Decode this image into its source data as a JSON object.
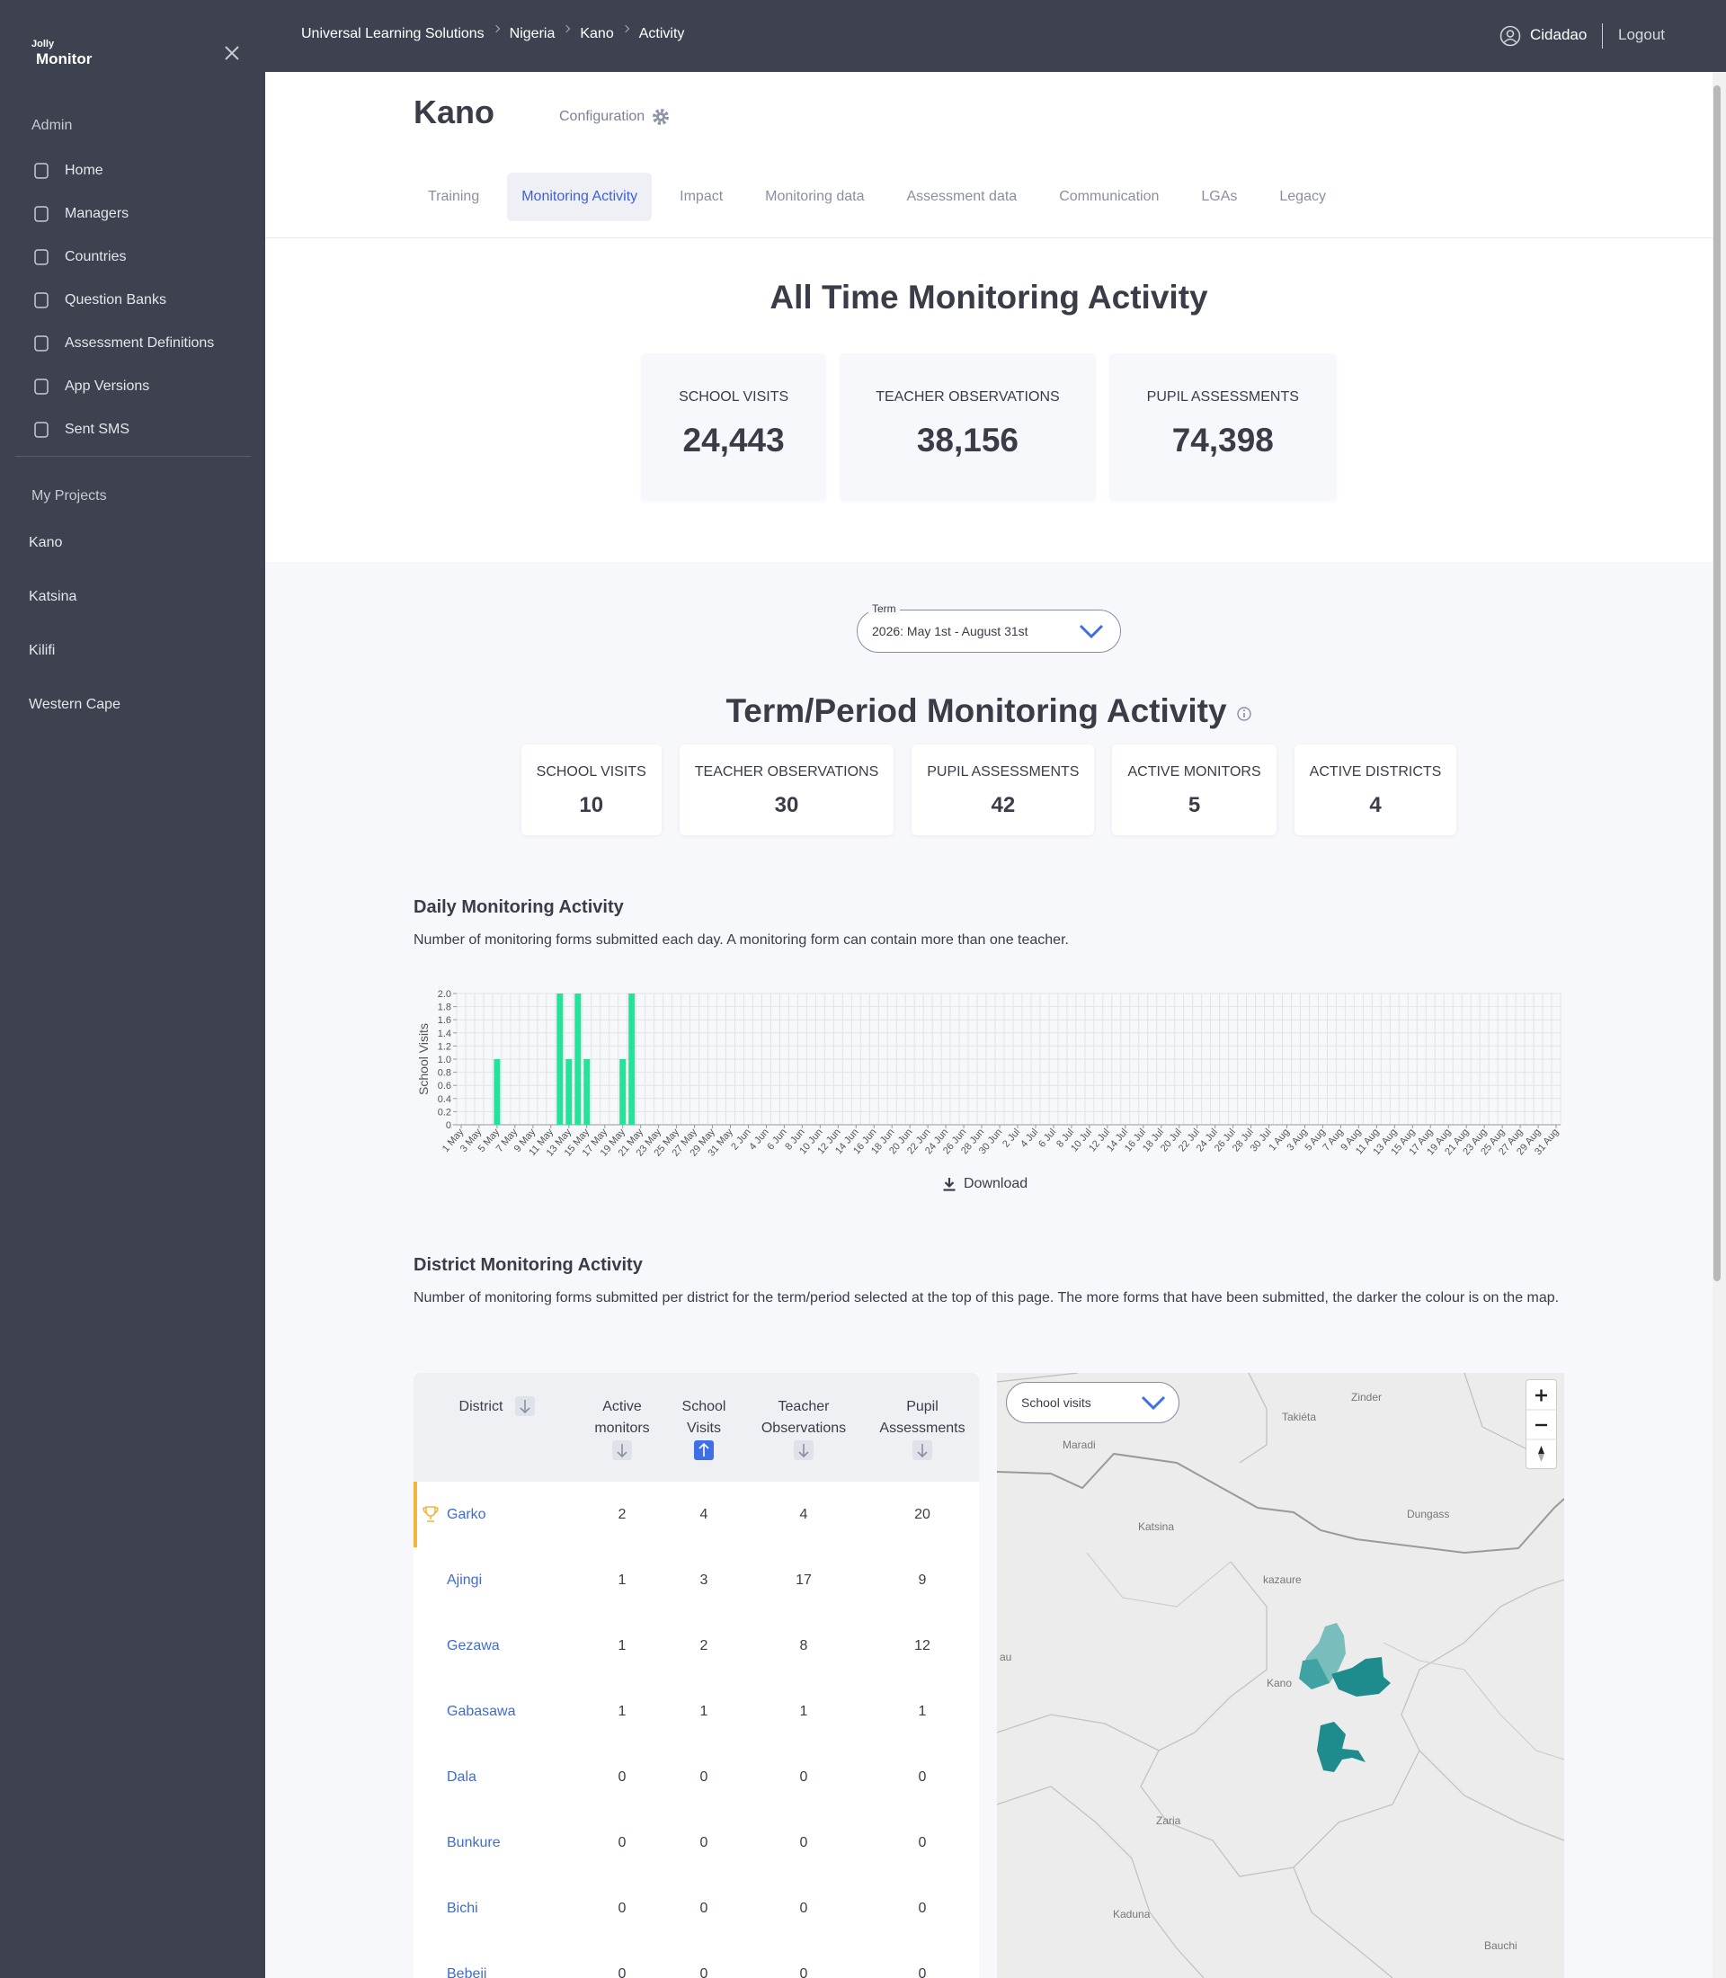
{
  "sidebar": {
    "logo_small": "Jolly",
    "logo": "Monitor",
    "admin_label": "Admin",
    "admin_items": [
      "Home",
      "Managers",
      "Countries",
      "Question Banks",
      "Assessment Definitions",
      "App Versions",
      "Sent SMS"
    ],
    "projects_label": "My Projects",
    "projects": [
      "Kano",
      "Katsina",
      "Kilifi",
      "Western Cape"
    ]
  },
  "topbar": {
    "breadcrumb": [
      "Universal Learning Solutions",
      "Nigeria",
      "Kano",
      "Activity"
    ],
    "user": "Cidadao",
    "logout": "Logout"
  },
  "header": {
    "title": "Kano",
    "configuration": "Configuration",
    "tabs": [
      "Training",
      "Monitoring Activity",
      "Impact",
      "Monitoring data",
      "Assessment data",
      "Communication",
      "LGAs",
      "Legacy"
    ]
  },
  "all_time": {
    "title": "All Time Monitoring Activity",
    "stats": [
      {
        "label": "SCHOOL VISITS",
        "value": "24,443"
      },
      {
        "label": "TEACHER OBSERVATIONS",
        "value": "38,156"
      },
      {
        "label": "PUPIL ASSESSMENTS",
        "value": "74,398"
      }
    ]
  },
  "term": {
    "label": "Term",
    "value": "2026: May 1st - August 31st"
  },
  "period": {
    "title": "Term/Period Monitoring Activity",
    "stats": [
      {
        "label": "SCHOOL VISITS",
        "value": 10
      },
      {
        "label": "TEACHER OBSERVATIONS",
        "value": 30
      },
      {
        "label": "PUPIL ASSESSMENTS",
        "value": 42
      },
      {
        "label": "ACTIVE MONITORS",
        "value": 5
      },
      {
        "label": "ACTIVE DISTRICTS",
        "value": 4
      }
    ]
  },
  "chart_data": {
    "type": "bar",
    "title": "Daily Monitoring Activity",
    "subtitle": "Number of monitoring forms submitted each day. A monitoring form can contain more than one teacher.",
    "y_label": "School Visits",
    "color": "#22e39a",
    "grid": true,
    "ylim": [
      0,
      2
    ],
    "yticks": [
      0,
      0.2,
      0.4,
      0.6,
      0.8,
      {
        "value": 1,
        "label": "1.0"
      },
      1.2,
      1.4,
      1.6,
      1.8,
      {
        "value": 2,
        "label": "2.0"
      }
    ],
    "categories": [
      "1 May",
      null,
      "3 May",
      null,
      "5 May",
      null,
      "7 May",
      null,
      "9 May",
      null,
      "11 May",
      null,
      "13 May",
      null,
      "15 May",
      null,
      "17 May",
      null,
      "19 May",
      null,
      "21 May",
      null,
      "23 May",
      null,
      "25 May",
      null,
      "27 May",
      null,
      "29 May",
      null,
      "31 May",
      null,
      "2 Jun",
      null,
      "4 Jun",
      null,
      "6 Jun",
      null,
      "8 Jun",
      null,
      "10 Jun",
      null,
      "12 Jun",
      null,
      "14 Jun",
      null,
      "16 Jun",
      null,
      "18 Jun",
      null,
      "20 Jun",
      null,
      "22 Jun",
      null,
      "24 Jun",
      null,
      "26 Jun",
      null,
      "28 Jun",
      null,
      "30 Jun",
      null,
      "2 Jul",
      null,
      "4 Jul",
      null,
      "6 Jul",
      null,
      "8 Jul",
      null,
      "10 Jul",
      null,
      "12 Jul",
      null,
      "14 Jul",
      null,
      "16 Jul",
      null,
      "18 Jul",
      null,
      "20 Jul",
      null,
      "22 Jul",
      null,
      "24 Jul",
      null,
      "26 Jul",
      null,
      "28 Jul",
      null,
      "30 Jul",
      null,
      "1 Aug",
      null,
      "3 Aug",
      null,
      "5 Aug",
      null,
      "7 Aug",
      null,
      "9 Aug",
      null,
      "11 Aug",
      null,
      "13 Aug",
      null,
      "15 Aug",
      null,
      "17 Aug",
      null,
      "19 Aug",
      null,
      "21 Aug",
      null,
      "23 Aug",
      null,
      "25 Aug",
      null,
      "27 Aug",
      null,
      "29 Aug",
      null,
      "31 Aug"
    ],
    "values": [
      0,
      0,
      0,
      0,
      1,
      0,
      0,
      0,
      0,
      0,
      0,
      2,
      1,
      2,
      1,
      0,
      0,
      0,
      1,
      2,
      0,
      0,
      0,
      0,
      0,
      0,
      0,
      0,
      0,
      0,
      0,
      0,
      0,
      0,
      0,
      0,
      0,
      0,
      0,
      0,
      0,
      0,
      0,
      0,
      0,
      0,
      0,
      0,
      0,
      0,
      0,
      0,
      0,
      0,
      0,
      0,
      0,
      0,
      0,
      0,
      0,
      0,
      0,
      0,
      0,
      0,
      0,
      0,
      0,
      0,
      0,
      0,
      0,
      0,
      0,
      0,
      0,
      0,
      0,
      0,
      0,
      0,
      0,
      0,
      0,
      0,
      0,
      0,
      0,
      0,
      0,
      0,
      0,
      0,
      0,
      0,
      0,
      0,
      0,
      0,
      0,
      0,
      0,
      0,
      0,
      0,
      0,
      0,
      0,
      0,
      0,
      0,
      0,
      0,
      0,
      0,
      0,
      0,
      0,
      0,
      0,
      0,
      0
    ]
  },
  "download": "Download",
  "district": {
    "title": "District Monitoring Activity",
    "description": "Number of monitoring forms submitted per district for the term/period selected at the top of this page. The more forms that have been submitted, the darker the colour is on the map.",
    "columns": [
      "District",
      "Active monitors",
      "School Visits",
      "Teacher Observations",
      "Pupil Assessments"
    ],
    "rows": [
      [
        "Garko",
        2,
        4,
        4,
        20
      ],
      [
        "Ajingi",
        1,
        3,
        17,
        9
      ],
      [
        "Gezawa",
        1,
        2,
        8,
        12
      ],
      [
        "Gabasawa",
        1,
        1,
        1,
        1
      ],
      [
        "Dala",
        0,
        0,
        0,
        0
      ],
      [
        "Bunkure",
        0,
        0,
        0,
        0
      ],
      [
        "Bichi",
        0,
        0,
        0,
        0
      ],
      [
        "Bebeji",
        0,
        0,
        0,
        0
      ]
    ],
    "map": {
      "metric": "School visits",
      "places": [
        "Zinder",
        "Takiéta",
        "Maradi",
        "Katsina",
        "Dungass",
        "kazaure",
        "au",
        "Kano",
        "Zaria",
        "Kaduna",
        "Bauchi"
      ]
    }
  }
}
